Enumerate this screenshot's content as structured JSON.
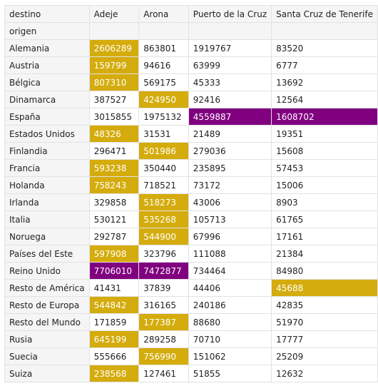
{
  "table": {
    "corner_columns_label": "destino",
    "corner_rows_label": "origen",
    "columns": [
      "Adeje",
      "Arona",
      "Puerto de la Cruz",
      "Santa Cruz de Tenerife"
    ],
    "highlight_colors": {
      "gold": "#d4ac0d",
      "purple": "#800080"
    },
    "rows": [
      {
        "label": "Alemania",
        "values": [
          "2606289",
          "863801",
          "1919767",
          "83520"
        ],
        "highlights": [
          "gold",
          "",
          "",
          ""
        ]
      },
      {
        "label": "Austria",
        "values": [
          "159799",
          "94616",
          "63999",
          "6777"
        ],
        "highlights": [
          "gold",
          "",
          "",
          ""
        ]
      },
      {
        "label": "Bélgica",
        "values": [
          "807310",
          "569175",
          "45333",
          "13692"
        ],
        "highlights": [
          "gold",
          "",
          "",
          ""
        ]
      },
      {
        "label": "Dinamarca",
        "values": [
          "387527",
          "424950",
          "92416",
          "12564"
        ],
        "highlights": [
          "",
          "gold",
          "",
          ""
        ]
      },
      {
        "label": "España",
        "values": [
          "3015855",
          "1975132",
          "4559887",
          "1608702"
        ],
        "highlights": [
          "",
          "",
          "purple",
          "purple"
        ]
      },
      {
        "label": "Estados Unidos",
        "values": [
          "48326",
          "31531",
          "21489",
          "19351"
        ],
        "highlights": [
          "gold",
          "",
          "",
          ""
        ]
      },
      {
        "label": "Finlandia",
        "values": [
          "296471",
          "501986",
          "279036",
          "15608"
        ],
        "highlights": [
          "",
          "gold",
          "",
          ""
        ]
      },
      {
        "label": "Francia",
        "values": [
          "593238",
          "350440",
          "235895",
          "57453"
        ],
        "highlights": [
          "gold",
          "",
          "",
          ""
        ]
      },
      {
        "label": "Holanda",
        "values": [
          "758243",
          "718521",
          "73172",
          "15006"
        ],
        "highlights": [
          "gold",
          "",
          "",
          ""
        ]
      },
      {
        "label": "Irlanda",
        "values": [
          "329858",
          "518273",
          "43006",
          "8903"
        ],
        "highlights": [
          "",
          "gold",
          "",
          ""
        ]
      },
      {
        "label": "Italia",
        "values": [
          "530121",
          "535268",
          "105713",
          "61765"
        ],
        "highlights": [
          "",
          "gold",
          "",
          ""
        ]
      },
      {
        "label": "Noruega",
        "values": [
          "292787",
          "544900",
          "67996",
          "17161"
        ],
        "highlights": [
          "",
          "gold",
          "",
          ""
        ]
      },
      {
        "label": "Países del Este",
        "values": [
          "597908",
          "323796",
          "111088",
          "21384"
        ],
        "highlights": [
          "gold",
          "",
          "",
          ""
        ]
      },
      {
        "label": "Reino Unido",
        "values": [
          "7706010",
          "7472877",
          "734464",
          "84980"
        ],
        "highlights": [
          "purple",
          "purple",
          "",
          ""
        ]
      },
      {
        "label": "Resto de América",
        "values": [
          "41431",
          "37839",
          "44406",
          "45688"
        ],
        "highlights": [
          "",
          "",
          "",
          "gold"
        ]
      },
      {
        "label": "Resto de Europa",
        "values": [
          "544842",
          "316165",
          "240186",
          "42835"
        ],
        "highlights": [
          "gold",
          "",
          "",
          ""
        ]
      },
      {
        "label": "Resto del Mundo",
        "values": [
          "171859",
          "177387",
          "88680",
          "51970"
        ],
        "highlights": [
          "",
          "gold",
          "",
          ""
        ]
      },
      {
        "label": "Rusia",
        "values": [
          "645199",
          "289258",
          "70710",
          "17777"
        ],
        "highlights": [
          "gold",
          "",
          "",
          ""
        ]
      },
      {
        "label": "Suecia",
        "values": [
          "555666",
          "756990",
          "151062",
          "25209"
        ],
        "highlights": [
          "",
          "gold",
          "",
          ""
        ]
      },
      {
        "label": "Suiza",
        "values": [
          "238568",
          "127461",
          "51855",
          "12632"
        ],
        "highlights": [
          "gold",
          "",
          "",
          ""
        ]
      }
    ]
  }
}
